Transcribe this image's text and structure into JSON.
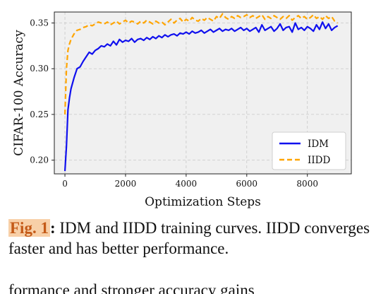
{
  "chart_data": {
    "type": "line",
    "xlabel": "Optimization Steps",
    "ylabel": "CIFAR-100 Accuracy",
    "xlim": [
      -350,
      9450
    ],
    "ylim": [
      0.185,
      0.362
    ],
    "xticks": [
      0,
      2000,
      4000,
      6000,
      8000
    ],
    "yticks": [
      0.2,
      0.25,
      0.3,
      0.35
    ],
    "xtick_labels": [
      "0",
      "2000",
      "4000",
      "6000",
      "8000"
    ],
    "ytick_labels": [
      "0.20",
      "0.25",
      "0.30",
      "0.35"
    ],
    "grid": true,
    "legend_position": "lower-right",
    "series": [
      {
        "name": "IDM",
        "color": "#1010ee",
        "style": "solid",
        "x": [
          0,
          50,
          100,
          150,
          200,
          300,
          400,
          500,
          600,
          700,
          800,
          900,
          1000,
          1100,
          1200,
          1300,
          1400,
          1500,
          1600,
          1700,
          1800,
          1900,
          2000,
          2100,
          2200,
          2300,
          2400,
          2500,
          2600,
          2700,
          2800,
          2900,
          3000,
          3100,
          3200,
          3300,
          3400,
          3500,
          3600,
          3700,
          3800,
          3900,
          4000,
          4100,
          4200,
          4300,
          4400,
          4500,
          4600,
          4700,
          4800,
          4900,
          5000,
          5100,
          5200,
          5300,
          5400,
          5500,
          5600,
          5700,
          5800,
          5900,
          6000,
          6100,
          6200,
          6300,
          6400,
          6500,
          6600,
          6700,
          6800,
          6900,
          7000,
          7100,
          7200,
          7300,
          7400,
          7500,
          7600,
          7700,
          7800,
          7900,
          8000,
          8100,
          8200,
          8300,
          8400,
          8500,
          8600,
          8700,
          8800,
          8900,
          9000
        ],
        "values": [
          0.188,
          0.215,
          0.255,
          0.268,
          0.278,
          0.29,
          0.3,
          0.302,
          0.308,
          0.313,
          0.318,
          0.316,
          0.32,
          0.322,
          0.325,
          0.324,
          0.327,
          0.325,
          0.33,
          0.326,
          0.332,
          0.329,
          0.331,
          0.33,
          0.333,
          0.329,
          0.332,
          0.333,
          0.331,
          0.334,
          0.332,
          0.335,
          0.333,
          0.336,
          0.334,
          0.337,
          0.335,
          0.337,
          0.338,
          0.336,
          0.339,
          0.338,
          0.34,
          0.338,
          0.341,
          0.339,
          0.34,
          0.342,
          0.339,
          0.341,
          0.343,
          0.34,
          0.342,
          0.344,
          0.341,
          0.343,
          0.342,
          0.344,
          0.341,
          0.343,
          0.345,
          0.342,
          0.344,
          0.341,
          0.343,
          0.345,
          0.34,
          0.348,
          0.342,
          0.344,
          0.346,
          0.341,
          0.344,
          0.349,
          0.342,
          0.345,
          0.346,
          0.34,
          0.35,
          0.343,
          0.345,
          0.342,
          0.346,
          0.344,
          0.341,
          0.348,
          0.343,
          0.351,
          0.344,
          0.349,
          0.342,
          0.345,
          0.347
        ]
      },
      {
        "name": "IIDD",
        "color": "#ffa500",
        "style": "dashed",
        "x": [
          0,
          50,
          100,
          150,
          200,
          300,
          400,
          500,
          600,
          700,
          800,
          900,
          1000,
          1100,
          1200,
          1300,
          1400,
          1500,
          1600,
          1700,
          1800,
          1900,
          2000,
          2100,
          2200,
          2300,
          2400,
          2500,
          2600,
          2700,
          2800,
          2900,
          3000,
          3100,
          3200,
          3300,
          3400,
          3500,
          3600,
          3700,
          3800,
          3900,
          4000,
          4100,
          4200,
          4300,
          4400,
          4500,
          4600,
          4700,
          4800,
          4900,
          5000,
          5100,
          5200,
          5300,
          5400,
          5500,
          5600,
          5700,
          5800,
          5900,
          6000,
          6100,
          6200,
          6300,
          6400,
          6500,
          6600,
          6700,
          6800,
          6900,
          7000,
          7100,
          7200,
          7300,
          7400,
          7500,
          7600,
          7700,
          7800,
          7900,
          8000,
          8100,
          8200,
          8300,
          8400,
          8500,
          8600,
          8700,
          8800,
          8900,
          9000
        ],
        "values": [
          0.25,
          0.3,
          0.32,
          0.327,
          0.332,
          0.338,
          0.342,
          0.343,
          0.345,
          0.346,
          0.348,
          0.347,
          0.349,
          0.351,
          0.35,
          0.349,
          0.351,
          0.348,
          0.35,
          0.352,
          0.349,
          0.351,
          0.353,
          0.35,
          0.352,
          0.351,
          0.349,
          0.352,
          0.35,
          0.353,
          0.351,
          0.349,
          0.352,
          0.35,
          0.351,
          0.348,
          0.351,
          0.354,
          0.35,
          0.353,
          0.355,
          0.351,
          0.354,
          0.352,
          0.356,
          0.353,
          0.352,
          0.355,
          0.353,
          0.356,
          0.354,
          0.352,
          0.357,
          0.355,
          0.36,
          0.356,
          0.354,
          0.357,
          0.355,
          0.358,
          0.356,
          0.357,
          0.359,
          0.356,
          0.358,
          0.355,
          0.357,
          0.359,
          0.354,
          0.357,
          0.355,
          0.358,
          0.356,
          0.354,
          0.357,
          0.355,
          0.358,
          0.353,
          0.356,
          0.358,
          0.355,
          0.357,
          0.354,
          0.356,
          0.359,
          0.355,
          0.357,
          0.354,
          0.358,
          0.355,
          0.357,
          0.352,
          0.35
        ]
      }
    ]
  },
  "caption": {
    "label": "Fig. 1",
    "colon": ":",
    "text": " IDM and IIDD training curves. IIDD converges faster and has better performance.",
    "cutoff_text": "formance and stronger accuracy gains"
  }
}
